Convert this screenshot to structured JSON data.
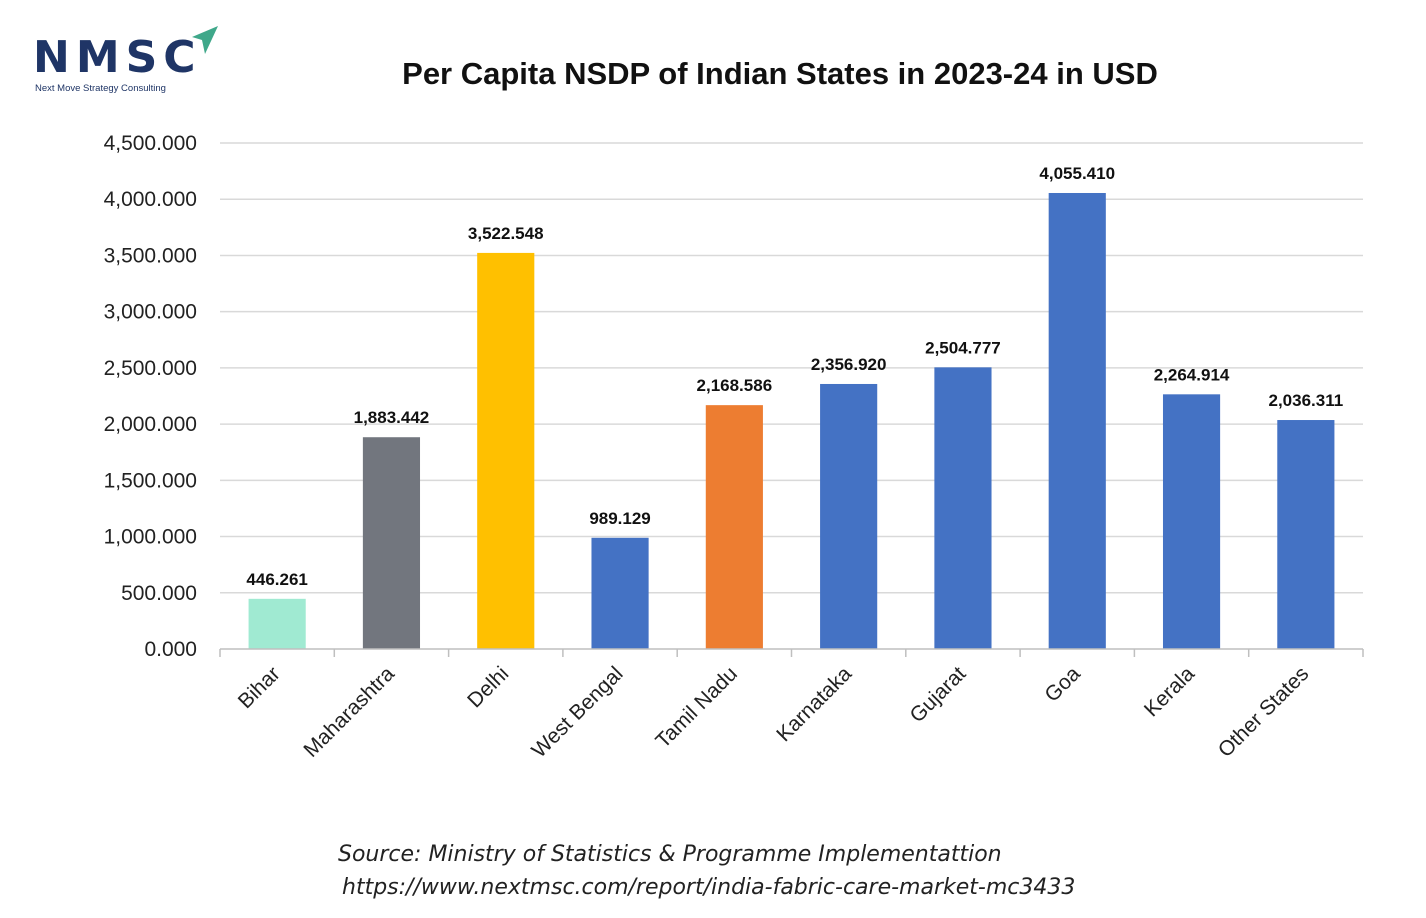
{
  "logo": {
    "text": "NMSC",
    "tagline": "Next Move Strategy Consulting",
    "colors": {
      "text": "#1f3566",
      "arrow": "#3fa88a"
    }
  },
  "chart_data": {
    "type": "bar",
    "title": "Per Capita NSDP of Indian States in 2023-24 in USD",
    "xlabel": "",
    "ylabel": "",
    "ylim": [
      0,
      4500
    ],
    "yticks": [
      0,
      500,
      1000,
      1500,
      2000,
      2500,
      3000,
      3500,
      4000,
      4500
    ],
    "ytick_labels": [
      "0.000",
      "500.000",
      "1,000.000",
      "1,500.000",
      "2,000.000",
      "2,500.000",
      "3,000.000",
      "3,500.000",
      "4,000.000",
      "4,500.000"
    ],
    "grid": true,
    "legend": "none",
    "categories": [
      "Bihar",
      "Maharashtra",
      "Delhi",
      "West Bengal",
      "Tamil Nadu",
      "Karnataka",
      "Gujarat",
      "Goa",
      "Kerala",
      "Other States"
    ],
    "values": [
      446.261,
      1883.442,
      3522.548,
      989.129,
      2168.586,
      2356.92,
      2504.777,
      4055.41,
      2264.914,
      2036.311
    ],
    "data_labels": [
      "446.261",
      "1,883.442",
      "3,522.548",
      "989.129",
      "2,168.586",
      "2,356.920",
      "2,504.777",
      "4,055.410",
      "2,264.914",
      "2,036.311"
    ],
    "colors": [
      "#a0ead2",
      "#72767e",
      "#ffc000",
      "#4472c4",
      "#ed7d31",
      "#4472c4",
      "#4472c4",
      "#4472c4",
      "#4472c4",
      "#4472c4"
    ]
  },
  "source": {
    "line1": "Source: Ministry of Statistics & Programme Implementattion",
    "line2": "https://www.nextmsc.com/report/india-fabric-care-market-mc3433"
  }
}
